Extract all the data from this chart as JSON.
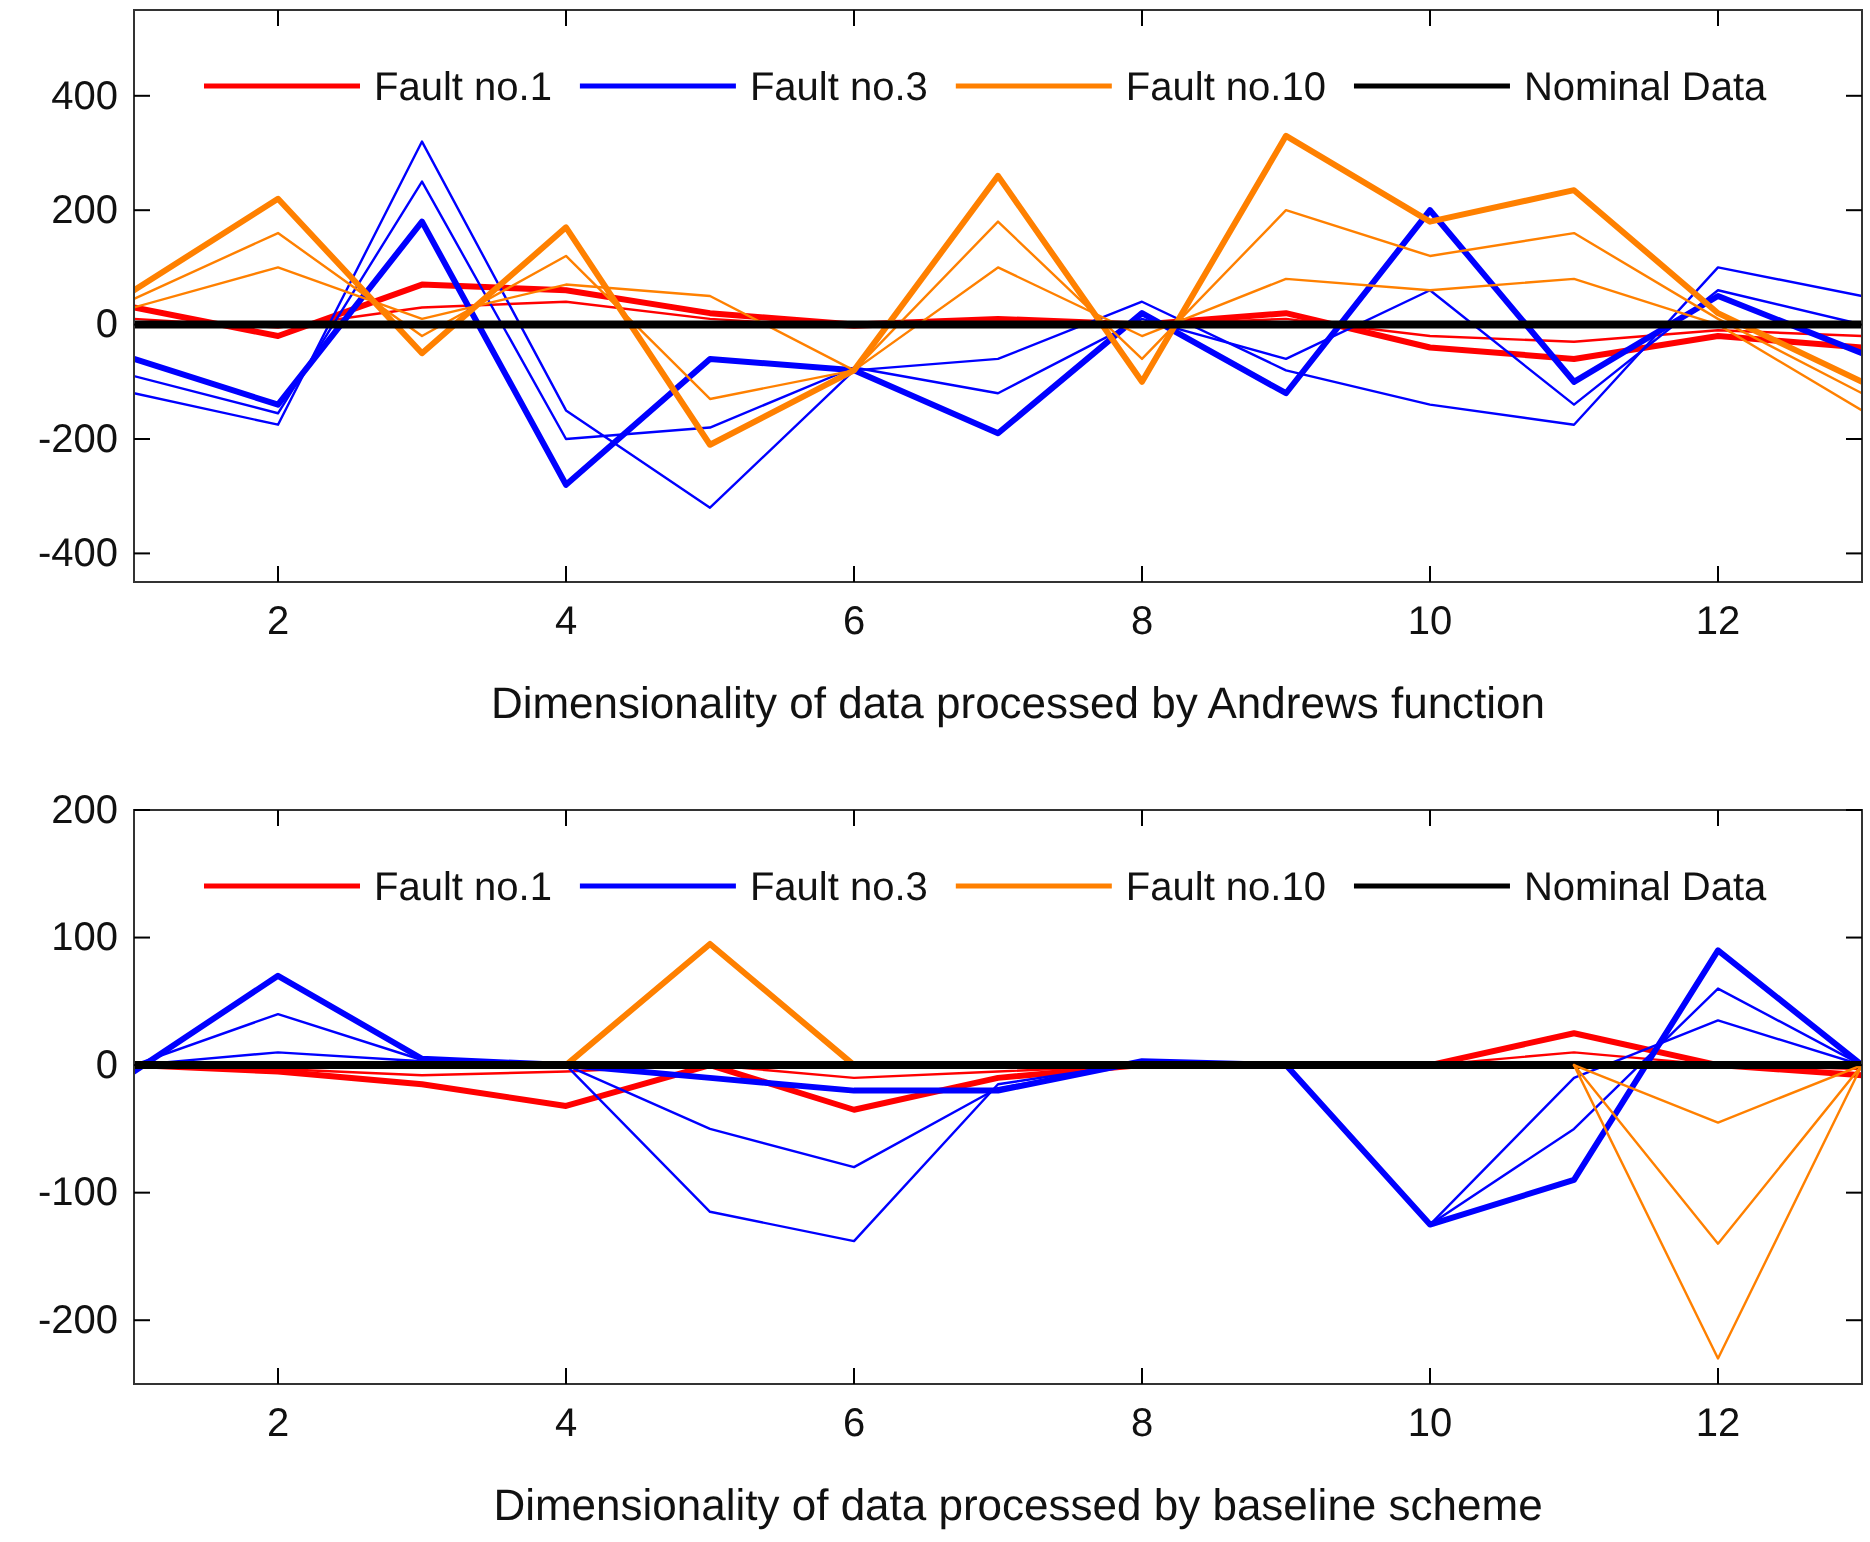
{
  "chart_data": [
    {
      "type": "line",
      "xlabel": "Dimensionality of data processed by Andrews function",
      "x": [
        1,
        2,
        3,
        4,
        5,
        6,
        7,
        8,
        9,
        10,
        11,
        12,
        13
      ],
      "xlim": [
        1,
        13
      ],
      "xticks": [
        2,
        4,
        6,
        8,
        10,
        12
      ],
      "ylim": [
        -450,
        550
      ],
      "yticks": [
        -400,
        -200,
        0,
        200,
        400
      ],
      "legend": "top",
      "grid": false,
      "line_style": "solid",
      "marker": "none",
      "series": [
        {
          "name": "Fault no.1",
          "color": "#ff0000",
          "values": [
            30,
            -20,
            70,
            60,
            20,
            0,
            10,
            0,
            20,
            -40,
            -60,
            -20,
            -40
          ]
        },
        {
          "color": "#ff0000",
          "values": [
            10,
            -5,
            30,
            40,
            10,
            -5,
            5,
            0,
            10,
            -20,
            -30,
            -10,
            -20
          ]
        },
        {
          "name": "Fault no.3",
          "color": "#0000ff",
          "values": [
            -60,
            -140,
            180,
            -280,
            -60,
            -80,
            -190,
            20,
            -120,
            200,
            -100,
            50,
            -50
          ]
        },
        {
          "color": "#0000ff",
          "values": [
            -90,
            -155,
            250,
            -200,
            -180,
            -75,
            -120,
            10,
            -60,
            60,
            -140,
            60,
            0
          ]
        },
        {
          "color": "#0000ff",
          "values": [
            -120,
            -175,
            320,
            -150,
            -320,
            -80,
            -60,
            40,
            -80,
            -140,
            -175,
            100,
            50
          ]
        },
        {
          "name": "Fault no.10",
          "color": "#ff8000",
          "values": [
            60,
            220,
            -50,
            170,
            -210,
            -80,
            260,
            -100,
            330,
            180,
            235,
            20,
            -100
          ]
        },
        {
          "color": "#ff8000",
          "values": [
            45,
            160,
            -20,
            120,
            -130,
            -80,
            180,
            -60,
            200,
            120,
            160,
            10,
            -120
          ]
        },
        {
          "color": "#ff8000",
          "values": [
            30,
            100,
            10,
            70,
            50,
            -80,
            100,
            -20,
            80,
            60,
            80,
            0,
            -150
          ]
        },
        {
          "name": "Nominal Data",
          "color": "#000000",
          "values": [
            0,
            0,
            0,
            0,
            0,
            0,
            0,
            0,
            0,
            0,
            0,
            0,
            0
          ]
        }
      ]
    },
    {
      "type": "line",
      "xlabel": "Dimensionality of data processed by baseline scheme",
      "x": [
        1,
        2,
        3,
        4,
        5,
        6,
        7,
        8,
        9,
        10,
        11,
        12,
        13
      ],
      "xlim": [
        1,
        13
      ],
      "xticks": [
        2,
        4,
        6,
        8,
        10,
        12
      ],
      "ylim": [
        -250,
        200
      ],
      "yticks": [
        -200,
        -100,
        0,
        100,
        200
      ],
      "legend": "top",
      "grid": false,
      "line_style": "solid",
      "marker": "none",
      "series": [
        {
          "name": "Fault no.1",
          "color": "#ff0000",
          "values": [
            0,
            -5,
            -15,
            -32,
            0,
            -35,
            -10,
            0,
            0,
            0,
            25,
            0,
            -8
          ]
        },
        {
          "color": "#ff0000",
          "values": [
            0,
            -3,
            -8,
            -5,
            0,
            -10,
            -5,
            0,
            0,
            0,
            10,
            0,
            -3
          ]
        },
        {
          "name": "Fault no.3",
          "color": "#0000ff",
          "values": [
            -5,
            70,
            5,
            0,
            -10,
            -20,
            -20,
            3,
            0,
            -125,
            -90,
            90,
            0
          ]
        },
        {
          "color": "#0000ff",
          "values": [
            0,
            40,
            4,
            0,
            -50,
            -80,
            -18,
            2,
            0,
            -125,
            -50,
            60,
            0
          ]
        },
        {
          "color": "#0000ff",
          "values": [
            0,
            10,
            3,
            0,
            -115,
            -138,
            -15,
            2,
            0,
            -125,
            -10,
            35,
            0
          ]
        },
        {
          "name": "Fault no.10",
          "color": "#ff8000",
          "x": [
            4,
            5,
            6
          ],
          "values": [
            0,
            95,
            0
          ]
        },
        {
          "name": "Nominal Data",
          "color": "#000000",
          "values": [
            0,
            0,
            0,
            0,
            0,
            0,
            0,
            0,
            0,
            0,
            0,
            0,
            0
          ]
        },
        {
          "color": "#ff8000",
          "x": [
            11,
            12,
            13
          ],
          "values": [
            0,
            -230,
            0
          ]
        },
        {
          "color": "#ff8000",
          "x": [
            11,
            12,
            13
          ],
          "values": [
            0,
            -140,
            0
          ]
        },
        {
          "color": "#ff8000",
          "x": [
            11,
            12,
            13
          ],
          "values": [
            0,
            -45,
            0
          ]
        }
      ]
    }
  ]
}
